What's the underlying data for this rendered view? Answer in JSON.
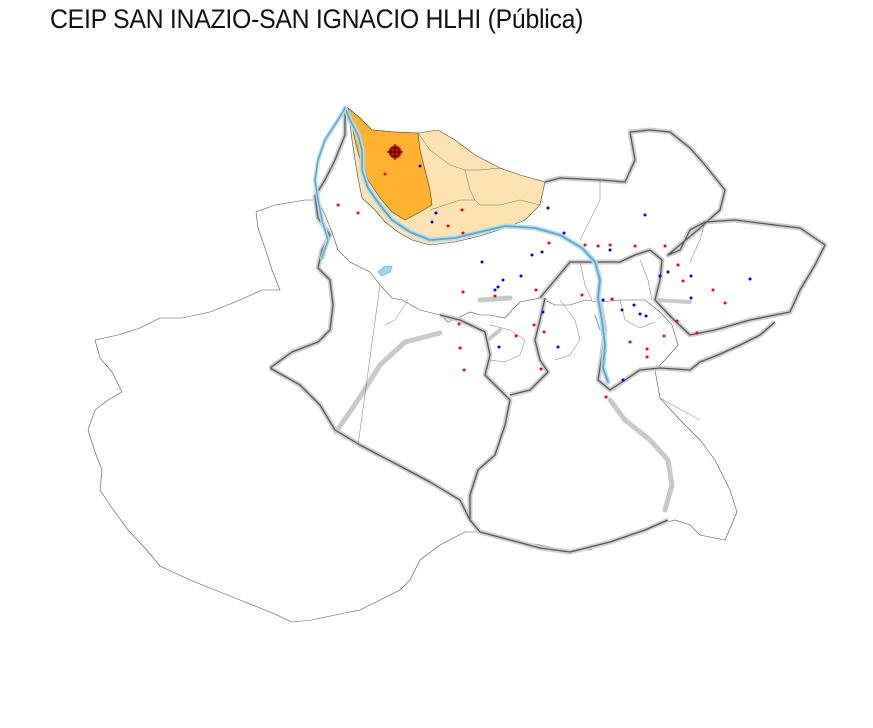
{
  "title": "CEIP SAN INAZIO-SAN IGNACIO HLHI (Pública)",
  "colors": {
    "selected_zone": "#ffb22e",
    "highlight_area": "#fde3b2",
    "river": "#5aa9c9",
    "major_roads": "#9a9a9a",
    "district_borders": "#555555",
    "public_school_points": "#ff0000",
    "concerted_school_points": "#0000ff",
    "selected_school_marker": "#ff0000"
  },
  "legend": null
}
